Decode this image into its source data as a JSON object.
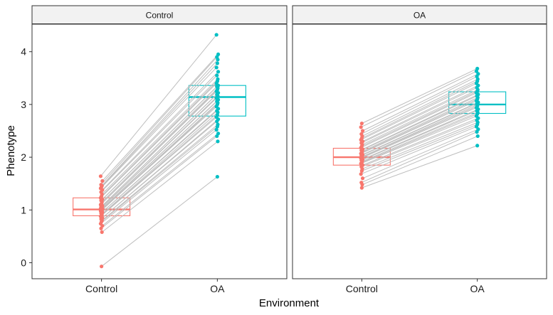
{
  "chart_data": {
    "type": "scatter",
    "subtype": "paired-dot boxplot, faceted",
    "xlabel": "Environment",
    "ylabel": "Phenotype",
    "categories": [
      "Control",
      "OA"
    ],
    "ylim": [
      -0.25,
      4.45
    ],
    "yticks": [
      0,
      1,
      2,
      3,
      4
    ],
    "grid": false,
    "legend": "none",
    "colors": {
      "Control": "#F8766D",
      "OA": "#00BFC4",
      "pair_line": "#BEBEBE",
      "strip_fill": "#F2F2F2",
      "strip_border": "#333333"
    },
    "panels": [
      {
        "strip": "Control",
        "box": {
          "Control": {
            "q1": 0.89,
            "median": 1.01,
            "q3": 1.23
          },
          "OA": {
            "q1": 2.78,
            "median": 3.14,
            "q3": 3.36
          }
        },
        "pairs": [
          [
            -0.07,
            1.63
          ],
          [
            0.58,
            2.3
          ],
          [
            0.65,
            2.4
          ],
          [
            0.7,
            2.45
          ],
          [
            0.74,
            2.52
          ],
          [
            0.78,
            2.58
          ],
          [
            0.8,
            2.62
          ],
          [
            0.83,
            2.68
          ],
          [
            0.85,
            2.72
          ],
          [
            0.88,
            2.76
          ],
          [
            0.9,
            2.8
          ],
          [
            0.92,
            2.85
          ],
          [
            0.94,
            2.88
          ],
          [
            0.96,
            2.92
          ],
          [
            0.98,
            2.96
          ],
          [
            0.99,
            3.0
          ],
          [
            1.0,
            3.03
          ],
          [
            1.01,
            3.06
          ],
          [
            1.02,
            3.09
          ],
          [
            1.03,
            3.12
          ],
          [
            1.04,
            3.14
          ],
          [
            1.05,
            3.16
          ],
          [
            1.06,
            3.19
          ],
          [
            1.08,
            3.22
          ],
          [
            1.1,
            3.25
          ],
          [
            1.12,
            3.28
          ],
          [
            1.15,
            3.31
          ],
          [
            1.18,
            3.34
          ],
          [
            1.2,
            3.36
          ],
          [
            1.23,
            3.4
          ],
          [
            1.26,
            3.44
          ],
          [
            1.3,
            3.48
          ],
          [
            1.34,
            3.55
          ],
          [
            1.38,
            3.62
          ],
          [
            1.41,
            3.7
          ],
          [
            1.44,
            3.78
          ],
          [
            1.46,
            3.85
          ],
          [
            1.48,
            3.9
          ],
          [
            1.55,
            3.95
          ],
          [
            1.64,
            4.32
          ]
        ]
      },
      {
        "strip": "OA",
        "box": {
          "Control": {
            "q1": 1.85,
            "median": 2.0,
            "q3": 2.17
          },
          "OA": {
            "q1": 2.83,
            "median": 3.0,
            "q3": 3.24
          }
        },
        "pairs": [
          [
            1.42,
            2.22
          ],
          [
            1.48,
            2.4
          ],
          [
            1.52,
            2.48
          ],
          [
            1.6,
            2.53
          ],
          [
            1.68,
            2.58
          ],
          [
            1.74,
            2.62
          ],
          [
            1.78,
            2.66
          ],
          [
            1.82,
            2.7
          ],
          [
            1.85,
            2.74
          ],
          [
            1.88,
            2.78
          ],
          [
            1.9,
            2.82
          ],
          [
            1.92,
            2.85
          ],
          [
            1.94,
            2.88
          ],
          [
            1.96,
            2.91
          ],
          [
            1.98,
            2.94
          ],
          [
            2.0,
            2.97
          ],
          [
            2.01,
            3.0
          ],
          [
            2.03,
            3.02
          ],
          [
            2.05,
            3.04
          ],
          [
            2.07,
            3.07
          ],
          [
            2.09,
            3.1
          ],
          [
            2.11,
            3.13
          ],
          [
            2.13,
            3.16
          ],
          [
            2.15,
            3.19
          ],
          [
            2.18,
            3.22
          ],
          [
            2.21,
            3.25
          ],
          [
            2.24,
            3.28
          ],
          [
            2.27,
            3.32
          ],
          [
            2.3,
            3.36
          ],
          [
            2.33,
            3.4
          ],
          [
            2.36,
            3.44
          ],
          [
            2.4,
            3.48
          ],
          [
            2.44,
            3.53
          ],
          [
            2.5,
            3.58
          ],
          [
            2.57,
            3.63
          ],
          [
            2.64,
            3.68
          ]
        ]
      }
    ]
  }
}
